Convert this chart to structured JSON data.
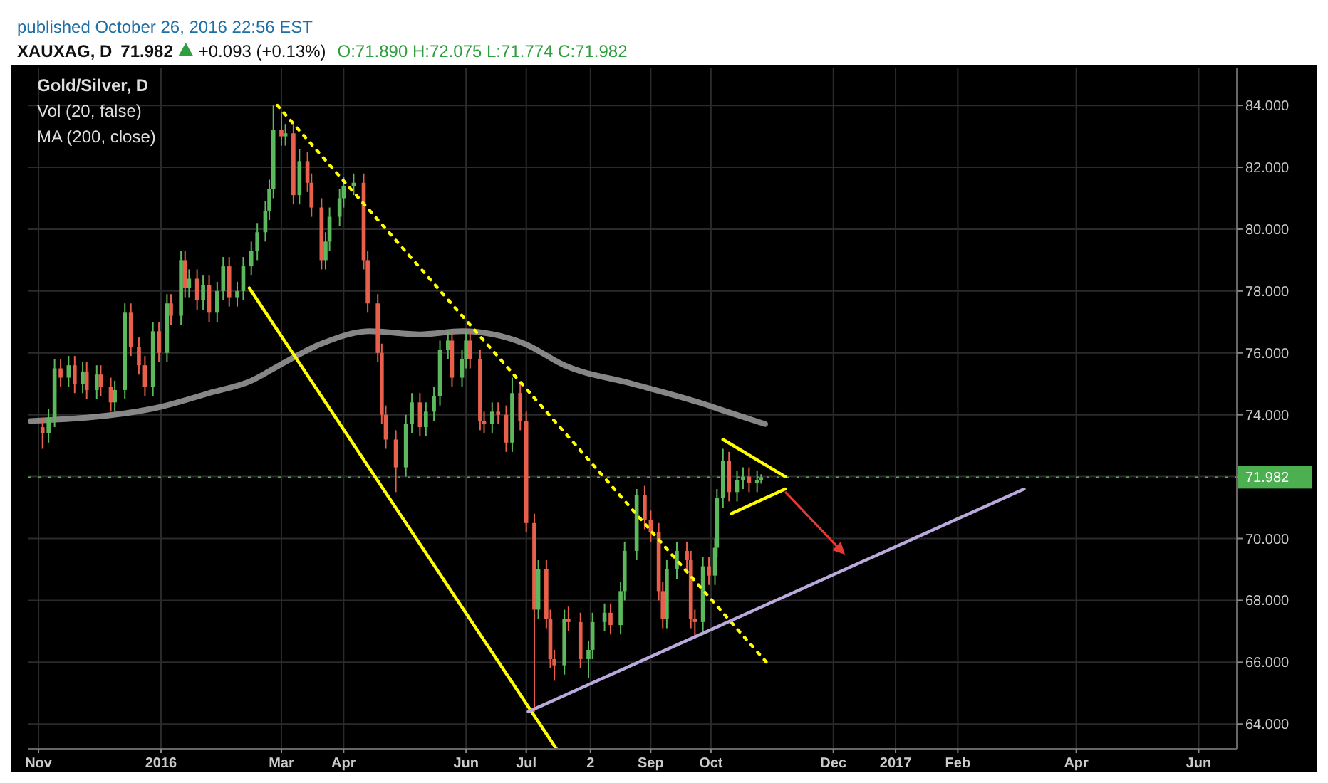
{
  "chart_data": {
    "type": "candlestick",
    "title": "XAUXAG, D",
    "subtitle": "Gold/Silver, D",
    "annotations": [
      "published October 26, 2016 22:56 EST",
      "71.982",
      "+0.093 (+0.13%)",
      "O:71.890 H:72.075 L:71.774 C:71.982",
      "Vol (20, false)",
      "MA (200, close)"
    ],
    "x": [
      "2015-11-03",
      "2015-11-06",
      "2015-11-09",
      "2015-11-12",
      "2015-11-16",
      "2015-11-19",
      "2015-11-23",
      "2015-11-25",
      "2015-11-30",
      "2015-12-02",
      "2015-12-07",
      "2015-12-09",
      "2015-12-14",
      "2015-12-17",
      "2015-12-21",
      "2015-12-24",
      "2015-12-28",
      "2015-12-31",
      "2016-01-04",
      "2016-01-06",
      "2016-01-11",
      "2016-01-13",
      "2016-01-15",
      "2016-01-19",
      "2016-01-22",
      "2016-01-25",
      "2016-01-29",
      "2016-02-01",
      "2016-02-04",
      "2016-02-08",
      "2016-02-11",
      "2016-02-15",
      "2016-02-18",
      "2016-02-22",
      "2016-02-24",
      "2016-02-26",
      "2016-03-01",
      "2016-03-03",
      "2016-03-07",
      "2016-03-10",
      "2016-03-14",
      "2016-03-16",
      "2016-03-21",
      "2016-03-23",
      "2016-03-25",
      "2016-03-30",
      "2016-04-01",
      "2016-04-06",
      "2016-04-11",
      "2016-04-13",
      "2016-04-18",
      "2016-04-20",
      "2016-04-22",
      "2016-04-27",
      "2016-05-02",
      "2016-05-05",
      "2016-05-09",
      "2016-05-12",
      "2016-05-16",
      "2016-05-19",
      "2016-05-23",
      "2016-05-25",
      "2016-05-30",
      "2016-06-01",
      "2016-06-03",
      "2016-06-08",
      "2016-06-10",
      "2016-06-14",
      "2016-06-17",
      "2016-06-21",
      "2016-06-24",
      "2016-06-28",
      "2016-07-01",
      "2016-07-05",
      "2016-07-07",
      "2016-07-11",
      "2016-07-13",
      "2016-07-15",
      "2016-07-20",
      "2016-07-22",
      "2016-07-28",
      "2016-08-01",
      "2016-08-03",
      "2016-08-09",
      "2016-08-12",
      "2016-08-17",
      "2016-08-19",
      "2016-08-25",
      "2016-08-29",
      "2016-09-01",
      "2016-09-05",
      "2016-09-07",
      "2016-09-09",
      "2016-09-14",
      "2016-09-19",
      "2016-09-21",
      "2016-09-23",
      "2016-09-27",
      "2016-09-30",
      "2016-10-03",
      "2016-10-04",
      "2016-10-07",
      "2016-10-10",
      "2016-10-14",
      "2016-10-17",
      "2016-10-20",
      "2016-10-24",
      "2016-10-26"
    ],
    "ohlc": [
      [
        73.6,
        73.9,
        72.9,
        73.4
      ],
      [
        73.4,
        74.2,
        73.1,
        73.9
      ],
      [
        73.9,
        75.8,
        73.6,
        75.5
      ],
      [
        75.5,
        75.8,
        74.9,
        75.2
      ],
      [
        75.2,
        75.9,
        74.9,
        75.6
      ],
      [
        75.6,
        75.9,
        74.7,
        75.0
      ],
      [
        75.0,
        75.7,
        74.7,
        75.4
      ],
      [
        75.4,
        75.7,
        74.5,
        74.8
      ],
      [
        74.8,
        75.6,
        74.5,
        75.3
      ],
      [
        75.3,
        75.6,
        74.6,
        74.9
      ],
      [
        74.9,
        75.2,
        74.1,
        74.4
      ],
      [
        74.4,
        75.1,
        74.1,
        74.8
      ],
      [
        74.8,
        77.6,
        74.5,
        77.3
      ],
      [
        77.3,
        77.6,
        75.9,
        76.2
      ],
      [
        76.2,
        76.5,
        75.3,
        75.6
      ],
      [
        75.6,
        75.9,
        74.6,
        74.9
      ],
      [
        74.9,
        77.0,
        74.6,
        76.7
      ],
      [
        76.7,
        77.0,
        75.7,
        76.0
      ],
      [
        76.0,
        77.9,
        75.7,
        77.6
      ],
      [
        77.6,
        77.9,
        76.9,
        77.2
      ],
      [
        77.2,
        79.3,
        76.9,
        79.0
      ],
      [
        79.0,
        79.3,
        77.8,
        78.1
      ],
      [
        78.1,
        78.7,
        77.8,
        78.4
      ],
      [
        78.4,
        78.7,
        77.4,
        77.7
      ],
      [
        77.7,
        78.5,
        77.4,
        78.2
      ],
      [
        78.2,
        78.5,
        77.0,
        77.3
      ],
      [
        77.3,
        78.3,
        77.0,
        78.0
      ],
      [
        78.0,
        79.1,
        77.7,
        78.8
      ],
      [
        78.8,
        79.1,
        77.5,
        77.8
      ],
      [
        77.8,
        78.3,
        77.5,
        78.0
      ],
      [
        78.0,
        79.1,
        77.7,
        78.8
      ],
      [
        78.8,
        79.6,
        78.5,
        79.3
      ],
      [
        79.3,
        80.2,
        79.0,
        79.9
      ],
      [
        79.9,
        80.9,
        79.6,
        80.6
      ],
      [
        80.6,
        81.6,
        80.3,
        81.3
      ],
      [
        81.3,
        84.0,
        81.0,
        83.2
      ],
      [
        83.2,
        83.8,
        82.7,
        83.0
      ],
      [
        83.0,
        83.4,
        82.7,
        83.1
      ],
      [
        83.1,
        83.4,
        80.8,
        81.1
      ],
      [
        81.1,
        82.6,
        80.8,
        82.2
      ],
      [
        82.2,
        82.5,
        81.2,
        81.5
      ],
      [
        81.5,
        81.8,
        80.4,
        80.7
      ],
      [
        80.7,
        81.0,
        78.7,
        79.0
      ],
      [
        79.0,
        79.9,
        78.7,
        79.6
      ],
      [
        79.6,
        80.7,
        79.3,
        80.4
      ],
      [
        80.4,
        81.3,
        80.1,
        81.0
      ],
      [
        81.0,
        81.7,
        80.7,
        81.4
      ],
      [
        81.4,
        81.8,
        81.1,
        81.5
      ],
      [
        81.5,
        81.8,
        78.7,
        79.0
      ],
      [
        79.0,
        79.3,
        77.3,
        77.6
      ],
      [
        77.6,
        77.9,
        75.7,
        76.0
      ],
      [
        76.0,
        76.3,
        73.7,
        74.0
      ],
      [
        74.0,
        74.3,
        72.9,
        73.2
      ],
      [
        73.2,
        73.5,
        71.5,
        72.3
      ],
      [
        72.3,
        74.0,
        72.0,
        73.7
      ],
      [
        73.7,
        74.7,
        73.4,
        74.4
      ],
      [
        74.4,
        74.7,
        73.3,
        73.6
      ],
      [
        73.6,
        74.4,
        73.3,
        74.1
      ],
      [
        74.1,
        74.9,
        73.8,
        74.6
      ],
      [
        74.6,
        76.4,
        74.3,
        76.1
      ],
      [
        76.1,
        76.7,
        75.8,
        76.4
      ],
      [
        76.4,
        76.7,
        74.9,
        75.2
      ],
      [
        75.2,
        76.1,
        74.9,
        75.8
      ],
      [
        75.8,
        76.7,
        75.5,
        76.4
      ],
      [
        76.4,
        76.7,
        75.5,
        75.8
      ],
      [
        75.8,
        76.1,
        73.5,
        73.8
      ],
      [
        73.8,
        74.1,
        73.4,
        73.7
      ],
      [
        73.7,
        74.4,
        73.4,
        74.1
      ],
      [
        74.1,
        74.4,
        73.7,
        74.0
      ],
      [
        74.0,
        74.3,
        72.8,
        73.1
      ],
      [
        73.1,
        75.2,
        72.8,
        74.7
      ],
      [
        74.7,
        75.0,
        73.5,
        73.8
      ],
      [
        73.8,
        74.1,
        70.2,
        70.5
      ],
      [
        70.5,
        70.8,
        64.4,
        67.7
      ],
      [
        67.7,
        69.3,
        67.4,
        69.0
      ],
      [
        69.0,
        69.3,
        67.1,
        67.4
      ],
      [
        67.4,
        67.7,
        65.8,
        66.1
      ],
      [
        66.1,
        66.4,
        65.4,
        65.9
      ],
      [
        65.9,
        67.7,
        65.6,
        67.4
      ],
      [
        67.4,
        67.8,
        67.0,
        67.3
      ],
      [
        67.3,
        67.6,
        65.8,
        66.1
      ],
      [
        66.1,
        66.7,
        65.5,
        66.4
      ],
      [
        66.4,
        67.6,
        66.1,
        67.3
      ],
      [
        67.3,
        67.9,
        67.0,
        67.6
      ],
      [
        67.6,
        67.9,
        66.9,
        67.2
      ],
      [
        67.2,
        68.6,
        66.9,
        68.3
      ],
      [
        68.3,
        69.9,
        68.0,
        69.6
      ],
      [
        69.6,
        71.6,
        69.3,
        71.4
      ],
      [
        71.4,
        71.7,
        70.3,
        70.6
      ],
      [
        70.6,
        70.9,
        69.9,
        70.2
      ],
      [
        70.2,
        70.5,
        68.0,
        68.3
      ],
      [
        68.3,
        68.6,
        67.1,
        67.4
      ],
      [
        67.4,
        69.3,
        67.1,
        69.0
      ],
      [
        69.0,
        69.9,
        68.7,
        69.6
      ],
      [
        69.6,
        69.9,
        69.0,
        69.3
      ],
      [
        69.3,
        69.6,
        67.1,
        67.4
      ],
      [
        67.4,
        67.7,
        66.8,
        67.3
      ],
      [
        67.3,
        69.4,
        67.0,
        69.1
      ],
      [
        69.1,
        69.4,
        68.5,
        68.8
      ],
      [
        68.8,
        70.0,
        68.5,
        69.7
      ],
      [
        69.7,
        71.6,
        69.4,
        71.3
      ],
      [
        71.3,
        72.9,
        71.0,
        72.5
      ],
      [
        72.5,
        72.8,
        71.2,
        71.5
      ],
      [
        71.5,
        72.2,
        71.2,
        71.9
      ],
      [
        71.9,
        72.3,
        71.6,
        72.0
      ],
      [
        72.0,
        72.3,
        71.5,
        71.8
      ],
      [
        71.8,
        72.2,
        71.5,
        71.89
      ],
      [
        71.89,
        72.075,
        71.774,
        71.982
      ]
    ],
    "series": [
      {
        "type": "line",
        "color": "#9e9e9e",
        "x": [
          "2015-10-28",
          "2015-12-28",
          "2016-01-25",
          "2016-02-15",
          "2016-02-29",
          "2016-03-21",
          "2016-04-14",
          "2016-05-09",
          "2016-05-30",
          "2016-06-30",
          "2016-07-20",
          "2016-08-23",
          "2016-09-25",
          "2016-10-09",
          "2016-10-28"
        ],
        "values": [
          73.8,
          74.2,
          74.7,
          75.1,
          75.6,
          76.3,
          76.7,
          76.6,
          76.7,
          76.3,
          75.6,
          75.0,
          74.4,
          74.1,
          73.7
        ]
      },
      {
        "type": "line",
        "color": "#ffff00",
        "line_style": "solid",
        "x": [
          "2016-02-14",
          "2016-07-16"
        ],
        "values": [
          78.1,
          63.2
        ]
      },
      {
        "type": "line",
        "color": "#ffff00",
        "line_style": "dotted",
        "x": [
          "2016-02-28",
          "2016-10-30"
        ],
        "values": [
          84.0,
          65.9
        ]
      },
      {
        "type": "line",
        "color": "#b9a9dd",
        "line_style": "solid",
        "x": [
          "2016-07-02",
          "2017-03-06"
        ],
        "values": [
          64.4,
          71.6
        ]
      },
      {
        "type": "line",
        "color": "#ffff00",
        "line_style": "solid",
        "x": [
          "2016-10-07",
          "2016-11-07"
        ],
        "values": [
          73.2,
          72.0
        ]
      },
      {
        "type": "line",
        "color": "#ffff00",
        "line_style": "solid",
        "x": [
          "2016-10-11",
          "2016-11-07"
        ],
        "values": [
          70.8,
          71.6
        ]
      }
    ],
    "xlim": [
      "2015-10-27",
      "2017-06-20"
    ],
    "xticks": [
      {
        "value": "2015-11-01",
        "label": "Nov"
      },
      {
        "value": "2016-01-01",
        "label": "2016"
      },
      {
        "value": "2016-03-01",
        "label": "Mar"
      },
      {
        "value": "2016-04-01",
        "label": "Apr"
      },
      {
        "value": "2016-06-01",
        "label": "Jun"
      },
      {
        "value": "2016-07-01",
        "label": "Jul"
      },
      {
        "value": "2016-08-02",
        "label": "2"
      },
      {
        "value": "2016-09-01",
        "label": "Sep"
      },
      {
        "value": "2016-10-01",
        "label": "Oct"
      },
      {
        "value": "2016-12-01",
        "label": "Dec"
      },
      {
        "value": "2017-01-01",
        "label": "2017"
      },
      {
        "value": "2017-02-01",
        "label": "Feb"
      },
      {
        "value": "2017-04-01",
        "label": "Apr"
      },
      {
        "value": "2017-06-01",
        "label": "Jun"
      }
    ],
    "ylim": [
      63.2,
      85.2
    ],
    "yticks": [
      {
        "value": 64,
        "label": "64.000"
      },
      {
        "value": 66,
        "label": "66.000"
      },
      {
        "value": 68,
        "label": "68.000"
      },
      {
        "value": 70,
        "label": "70.000"
      },
      {
        "value": 72,
        "label": null
      },
      {
        "value": 74,
        "label": "74.000"
      },
      {
        "value": 76,
        "label": "76.000"
      },
      {
        "value": 78,
        "label": "78.000"
      },
      {
        "value": 80,
        "label": "80.000"
      },
      {
        "value": 82,
        "label": "82.000"
      },
      {
        "value": 84,
        "label": "84.000"
      }
    ],
    "grid": true,
    "ref_lines": [
      {
        "axis": "y",
        "value": 71.982,
        "label": "71.982",
        "color": "#4caf50",
        "line_style": "dotted"
      }
    ]
  }
}
